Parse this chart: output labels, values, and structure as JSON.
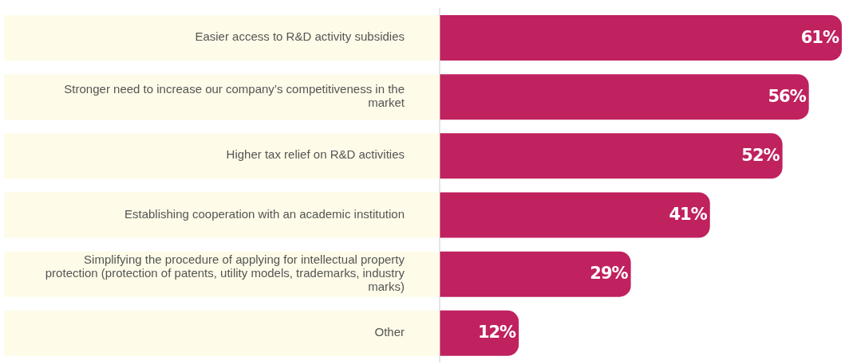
{
  "chart_data": {
    "type": "bar",
    "orientation": "horizontal",
    "categories": [
      "Easier access to R&D activity subsidies",
      "Stronger need to increase our company’s competitiveness in the market",
      "Higher tax relief on R&D activities",
      "Establishing cooperation with an academic institution",
      "Simplifying the procedure of applying for intellectual property protection (protection of patents, utility models, trademarks, industry marks)",
      "Other"
    ],
    "values": [
      61,
      56,
      52,
      41,
      29,
      12
    ],
    "color": "#c0215f",
    "value_labels": [
      "61%",
      "56%",
      "52%",
      "41%",
      "29%",
      "12%"
    ]
  }
}
